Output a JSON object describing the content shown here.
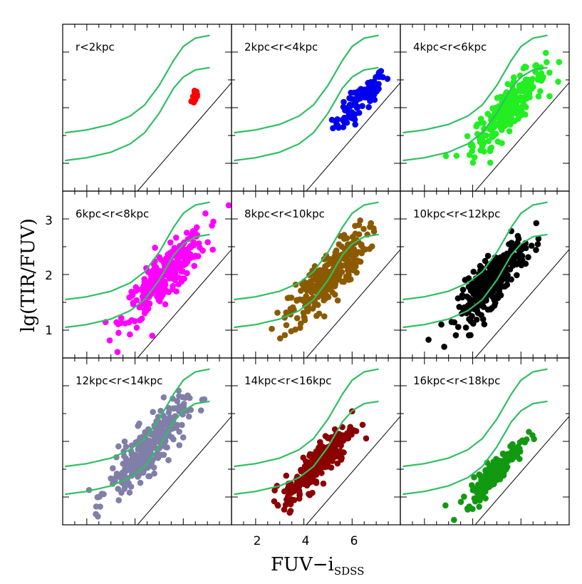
{
  "chart_data": {
    "type": "scatter",
    "layout": "3x3 grid of panels sharing axes",
    "xlabel": "FUV−i",
    "xlabel_subscript": "SDSS",
    "ylabel": "lg(TIR/FUV)",
    "xlim": [
      1,
      8
    ],
    "ylim": [
      0.5,
      3.5
    ],
    "x_ticks": [
      2,
      4,
      6
    ],
    "y_ticks": [
      1,
      2,
      3
    ],
    "reference_line": {
      "slope": 0.5,
      "intercept": -1.55
    },
    "green_curves": [
      {
        "name": "upper",
        "x": [
          1.1,
          2.0,
          3.0,
          3.8,
          4.4,
          5.0,
          5.6,
          6.0,
          6.5,
          7.1
        ],
        "y": [
          1.55,
          1.6,
          1.7,
          1.85,
          2.05,
          2.4,
          2.85,
          3.1,
          3.25,
          3.3
        ]
      },
      {
        "name": "lower",
        "x": [
          1.1,
          2.0,
          3.0,
          3.8,
          4.4,
          5.0,
          5.6,
          6.0,
          6.5,
          7.1
        ],
        "y": [
          1.05,
          1.1,
          1.2,
          1.35,
          1.55,
          1.9,
          2.35,
          2.55,
          2.68,
          2.72
        ]
      }
    ],
    "panels": [
      {
        "label": "r<2kpc",
        "color": "#ff0000",
        "x_center": 6.5,
        "x_spread": 0.08,
        "y_center": 2.22,
        "y_spread": 0.1,
        "n": 14
      },
      {
        "label": "2kpc<r<4kpc",
        "color": "#0000ee",
        "x_center": 6.3,
        "x_spread": 0.55,
        "y_center": 2.1,
        "y_spread": 0.18,
        "n": 90
      },
      {
        "label": "4kpc<r<6kpc",
        "color": "#22ee22",
        "x_center": 5.5,
        "x_spread": 0.75,
        "y_center": 2.0,
        "y_spread": 0.28,
        "n": 260
      },
      {
        "label": "6kpc<r<8kpc",
        "color": "#ff00ff",
        "x_center": 5.2,
        "x_spread": 0.85,
        "y_center": 1.95,
        "y_spread": 0.3,
        "n": 280
      },
      {
        "label": "8kpc<r<10kpc",
        "color": "#8b5a00",
        "x_center": 5.0,
        "x_spread": 0.8,
        "y_center": 1.95,
        "y_spread": 0.32,
        "n": 300
      },
      {
        "label": "10kpc<r<12kpc",
        "color": "#000000",
        "x_center": 4.8,
        "x_spread": 0.7,
        "y_center": 1.9,
        "y_spread": 0.3,
        "n": 300
      },
      {
        "label": "12kpc<r<14kpc",
        "color": "#7f7fa8",
        "x_center": 4.5,
        "x_spread": 0.8,
        "y_center": 1.85,
        "y_spread": 0.32,
        "n": 290
      },
      {
        "label": "14kpc<r<16kpc",
        "color": "#8b0000",
        "x_center": 4.6,
        "x_spread": 0.7,
        "y_center": 1.6,
        "y_spread": 0.25,
        "n": 260
      },
      {
        "label": "16kpc<r<18kpc",
        "color": "#119911",
        "x_center": 4.9,
        "x_spread": 0.6,
        "y_center": 1.45,
        "y_spread": 0.17,
        "n": 190
      }
    ]
  }
}
